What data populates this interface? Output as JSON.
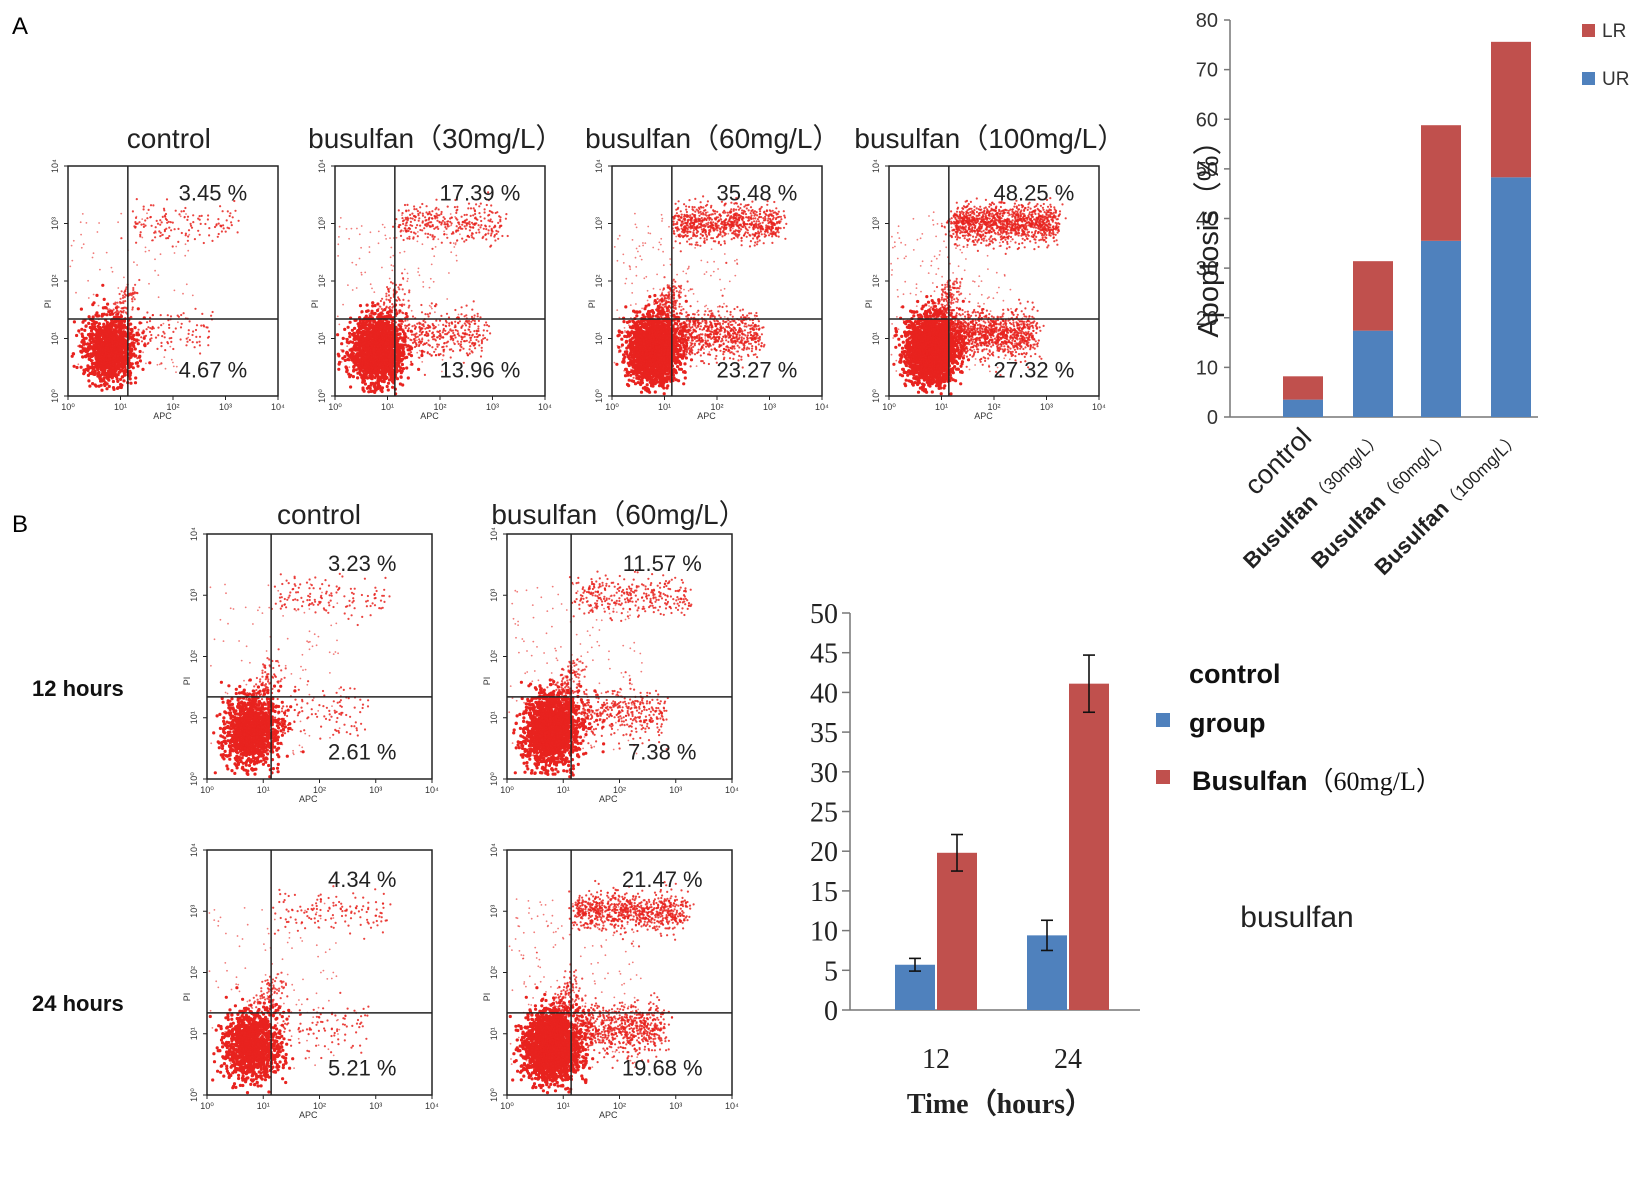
{
  "panels": {
    "a": "A",
    "b": "B"
  },
  "chart_data": [
    {
      "type": "scatter",
      "id": "flow-cytometry-A",
      "xlabel": "APC",
      "ylabel": "PI",
      "tick_labels": [
        "10⁰",
        "10¹",
        "10²",
        "10³",
        "10⁴"
      ],
      "plots": [
        {
          "title": "control",
          "ur": "3.45 %",
          "lr": "4.67 %",
          "density": "low"
        },
        {
          "title": "busulfan（30mg/L）",
          "ur": "17.39 %",
          "lr": "13.96 %",
          "density": "med"
        },
        {
          "title": "busulfan（60mg/L）",
          "ur": "35.48 %",
          "lr": "23.27 %",
          "density": "high"
        },
        {
          "title": "busulfan（100mg/L）",
          "ur": "48.25 %",
          "lr": "27.32 %",
          "density": "veryhigh"
        }
      ]
    },
    {
      "type": "bar",
      "id": "apoptosis-stacked",
      "stacked": true,
      "ylabel": "Apoptosis（%）",
      "ylim": [
        0,
        80
      ],
      "yticks": [
        "0",
        "10",
        "20",
        "30",
        "40",
        "50",
        "60",
        "70",
        "80"
      ],
      "categories": [
        {
          "bold": "",
          "rest": "control"
        },
        {
          "bold": "Busulfan",
          "rest": "（30mg/L）"
        },
        {
          "bold": "Busulfan",
          "rest": "（60mg/L）"
        },
        {
          "bold": "Busulfan",
          "rest": "（100mg/L）"
        }
      ],
      "series": [
        {
          "name": "UR",
          "color": "#4f81bd",
          "values": [
            3.5,
            17.4,
            35.5,
            48.3
          ]
        },
        {
          "name": "LR",
          "color": "#c0504d",
          "values": [
            4.7,
            14.0,
            23.3,
            27.3
          ]
        }
      ],
      "legend": "top-right"
    },
    {
      "type": "scatter",
      "id": "flow-cytometry-B",
      "xlabel": "APC",
      "ylabel": "PI",
      "tick_labels": [
        "10⁰",
        "10¹",
        "10²",
        "10³",
        "10⁴"
      ],
      "column_titles": [
        "control",
        "busulfan（60mg/L）"
      ],
      "row_labels": [
        "12 hours",
        "24 hours"
      ],
      "plots": [
        {
          "ur": "3.23 %",
          "lr": "2.61 %",
          "density": "low"
        },
        {
          "ur": "11.57 %",
          "lr": "7.38 %",
          "density": "med"
        },
        {
          "ur": "4.34 %",
          "lr": "5.21 %",
          "density": "low"
        },
        {
          "ur": "21.47 %",
          "lr": "19.68 %",
          "density": "high"
        }
      ]
    },
    {
      "type": "bar",
      "id": "time-course",
      "ylim": [
        0,
        50
      ],
      "yticks": [
        "0",
        "5",
        "10",
        "15",
        "20",
        "25",
        "30",
        "35",
        "40",
        "45",
        "50"
      ],
      "categories": [
        "12",
        "24"
      ],
      "xlabel": "Time（hours）",
      "series": [
        {
          "name": "control group",
          "color": "#4f81bd",
          "values": [
            5.7,
            9.4
          ],
          "errors": [
            0.8,
            1.9
          ]
        },
        {
          "name": "Busulfan（60mg/L）",
          "color": "#c0504d",
          "values": [
            19.8,
            41.1
          ],
          "errors": [
            2.3,
            3.6
          ]
        }
      ],
      "legend_texts": {
        "line1": "control",
        "line2": "group",
        "line3_bold": "Busulfan",
        "line3_rest": "（60mg/L）"
      },
      "extra_label": "busulfan"
    }
  ]
}
